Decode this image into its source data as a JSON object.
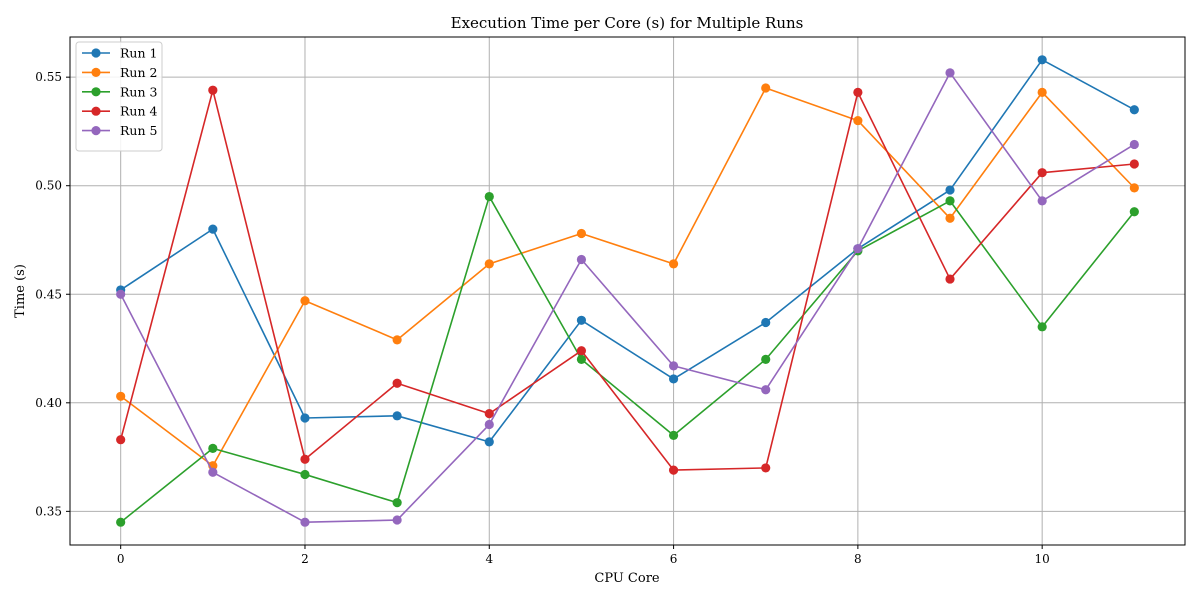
{
  "chart_data": {
    "type": "line",
    "title": "Execution Time per Core (s) for Multiple Runs",
    "xlabel": "CPU Core",
    "ylabel": "Time (s)",
    "x": [
      0,
      1,
      2,
      3,
      4,
      5,
      6,
      7,
      8,
      9,
      10,
      11
    ],
    "xlim": [
      -0.55,
      11.55
    ],
    "ylim": [
      0.3345,
      0.5685
    ],
    "xticks": [
      0,
      2,
      4,
      6,
      8,
      10
    ],
    "yticks": [
      0.35,
      0.4,
      0.45,
      0.5,
      0.55
    ],
    "grid": true,
    "legend_position": "top-left",
    "series": [
      {
        "name": "Run 1",
        "color": "#1f77b4",
        "values": [
          0.452,
          0.48,
          0.393,
          0.394,
          0.382,
          0.438,
          0.411,
          0.437,
          0.471,
          0.498,
          0.558,
          0.535
        ]
      },
      {
        "name": "Run 2",
        "color": "#ff7f0e",
        "values": [
          0.403,
          0.371,
          0.447,
          0.429,
          0.464,
          0.478,
          0.464,
          0.545,
          0.53,
          0.485,
          0.543,
          0.499
        ]
      },
      {
        "name": "Run 3",
        "color": "#2ca02c",
        "values": [
          0.345,
          0.379,
          0.367,
          0.354,
          0.495,
          0.42,
          0.385,
          0.42,
          0.47,
          0.493,
          0.435,
          0.488
        ]
      },
      {
        "name": "Run 4",
        "color": "#d62728",
        "values": [
          0.383,
          0.544,
          0.374,
          0.409,
          0.395,
          0.424,
          0.369,
          0.37,
          0.543,
          0.457,
          0.506,
          0.51
        ]
      },
      {
        "name": "Run 5",
        "color": "#9467bd",
        "values": [
          0.45,
          0.368,
          0.345,
          0.346,
          0.39,
          0.466,
          0.417,
          0.406,
          0.471,
          0.552,
          0.493,
          0.519
        ]
      }
    ]
  }
}
